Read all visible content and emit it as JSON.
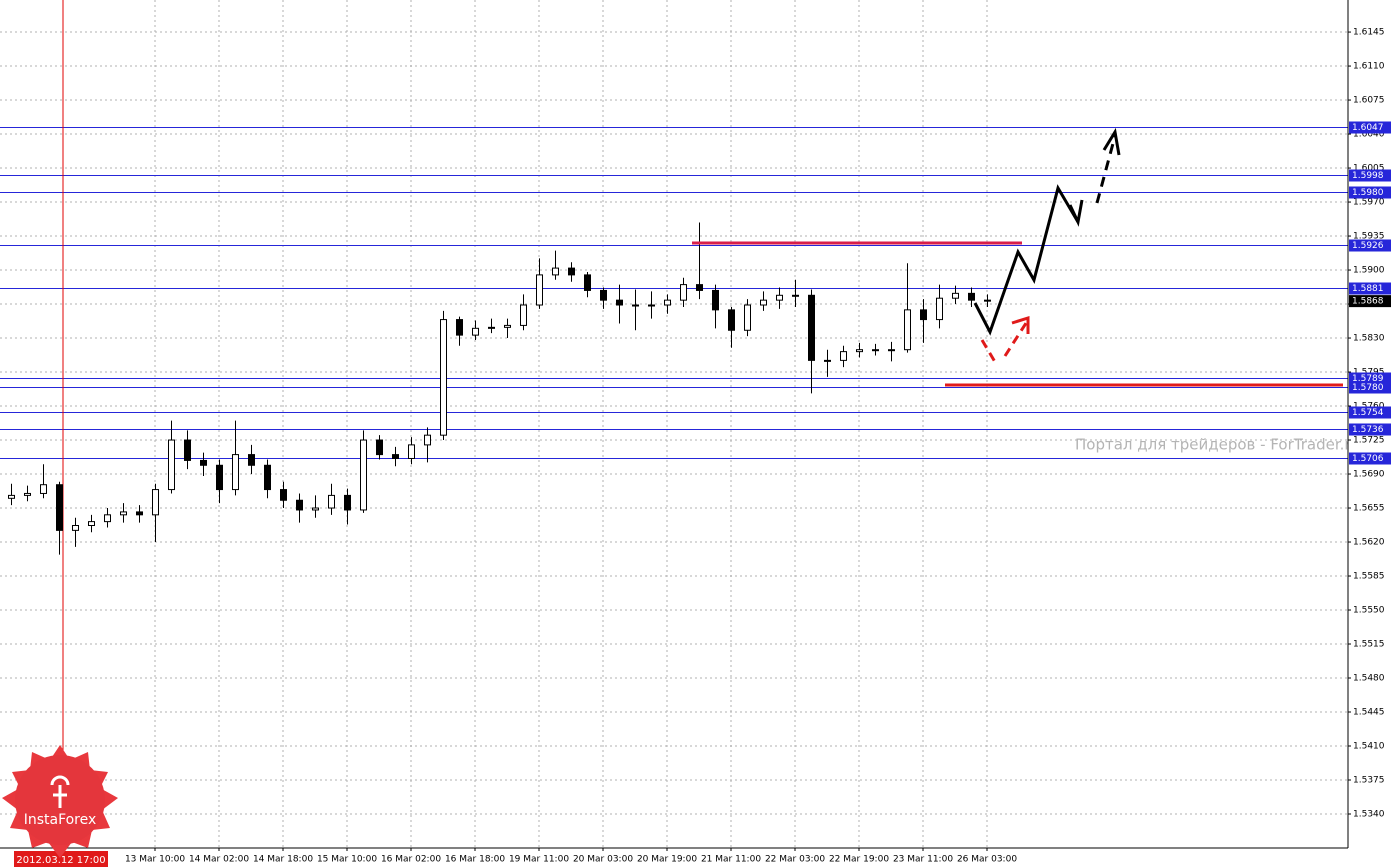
{
  "chart_data": {
    "type": "candlestick",
    "categories": [
      null,
      null,
      null,
      null,
      null,
      null,
      null,
      null,
      null,
      "13 Mar 10:00",
      null,
      null,
      null,
      "14 Mar 02:00",
      null,
      null,
      null,
      "14 Mar 18:00",
      null,
      null,
      null,
      "15 Mar 10:00",
      null,
      null,
      null,
      "16 Mar 02:00",
      null,
      null,
      null,
      "16 Mar 18:00",
      null,
      null,
      null,
      "19 Mar 11:00",
      null,
      null,
      null,
      "20 Mar 03:00",
      null,
      null,
      null,
      "20 Mar 19:00",
      null,
      null,
      null,
      "21 Mar 11:00",
      null,
      null,
      null,
      "22 Mar 03:00",
      null,
      null,
      null,
      "22 Mar 19:00",
      null,
      null,
      null,
      "23 Mar 11:00",
      null,
      null,
      null,
      "26 Mar 03:00"
    ],
    "open": [
      1.5665,
      1.5668,
      1.567,
      1.5679,
      1.5632,
      1.5637,
      1.5641,
      1.5648,
      1.5651,
      1.5648,
      1.5674,
      1.5725,
      1.5704,
      1.5699,
      1.5674,
      1.571,
      1.5699,
      1.5674,
      1.5663,
      1.5653,
      1.5655,
      1.5668,
      1.5653,
      1.5725,
      1.571,
      1.5706,
      1.572,
      1.573,
      1.5849,
      1.5833,
      1.584,
      1.5841,
      1.5843,
      1.5864,
      1.5895,
      1.5902,
      1.5895,
      1.5879,
      1.5869,
      1.5864,
      1.5864,
      1.5864,
      1.5869,
      1.5885,
      1.5879,
      1.5859,
      1.5838,
      1.5864,
      1.5869,
      1.5874,
      1.5874,
      1.5807,
      1.5807,
      1.5816,
      1.5818,
      1.5818,
      1.5818,
      1.5859,
      1.5849,
      1.5871,
      1.5876,
      1.5869
    ],
    "high": [
      1.568,
      1.5678,
      1.57,
      1.5682,
      1.5645,
      1.5648,
      1.5655,
      1.566,
      1.5658,
      1.568,
      1.5745,
      1.5735,
      1.5712,
      1.5705,
      1.5745,
      1.572,
      1.5705,
      1.5682,
      1.567,
      1.5668,
      1.568,
      1.5675,
      1.5735,
      1.573,
      1.5718,
      1.5728,
      1.5738,
      1.5858,
      1.5852,
      1.5848,
      1.585,
      1.585,
      1.5875,
      1.5912,
      1.592,
      1.5908,
      1.5898,
      1.5882,
      1.5885,
      1.588,
      1.5878,
      1.5875,
      1.5892,
      1.5949,
      1.5885,
      1.5862,
      1.587,
      1.5878,
      1.5882,
      1.589,
      1.588,
      1.5818,
      1.5822,
      1.5825,
      1.5824,
      1.5826,
      1.5907,
      1.587,
      1.5885,
      1.5884,
      1.5882,
      1.5875
    ],
    "low": [
      1.5658,
      1.5662,
      1.5665,
      1.5607,
      1.5615,
      1.563,
      1.5635,
      1.564,
      1.564,
      1.562,
      1.567,
      1.5695,
      1.5688,
      1.566,
      1.5668,
      1.569,
      1.5665,
      1.5655,
      1.564,
      1.5645,
      1.5648,
      1.5638,
      1.565,
      1.5705,
      1.5698,
      1.57,
      1.5702,
      1.5725,
      1.5822,
      1.5828,
      1.5835,
      1.583,
      1.5838,
      1.586,
      1.589,
      1.5888,
      1.5872,
      1.586,
      1.5845,
      1.5838,
      1.585,
      1.5855,
      1.5862,
      1.587,
      1.584,
      1.582,
      1.5832,
      1.5858,
      1.586,
      1.5862,
      1.5773,
      1.579,
      1.58,
      1.581,
      1.5812,
      1.5806,
      1.5815,
      1.5825,
      1.584,
      1.5865,
      1.5862,
      1.5862
    ],
    "close": [
      1.5668,
      1.567,
      1.5679,
      1.5632,
      1.5637,
      1.5641,
      1.5648,
      1.5651,
      1.5648,
      1.5674,
      1.5725,
      1.5704,
      1.5699,
      1.5674,
      1.571,
      1.5699,
      1.5674,
      1.5663,
      1.5653,
      1.5655,
      1.5668,
      1.5653,
      1.5725,
      1.571,
      1.5706,
      1.572,
      1.573,
      1.5849,
      1.5833,
      1.584,
      1.5841,
      1.5843,
      1.5864,
      1.5895,
      1.5902,
      1.5895,
      1.5879,
      1.5869,
      1.5864,
      1.5864,
      1.5864,
      1.5869,
      1.5885,
      1.5879,
      1.5859,
      1.5838,
      1.5864,
      1.5869,
      1.5874,
      1.5874,
      1.5807,
      1.5807,
      1.5816,
      1.5818,
      1.5818,
      1.5818,
      1.5859,
      1.5849,
      1.5871,
      1.5876,
      1.5869,
      1.5868
    ],
    "ylim": [
      1.5305,
      1.6178
    ],
    "yticks": [
      {
        "value": 1.534,
        "label": "1.5340"
      },
      1.5375,
      {
        "value": 1.541,
        "label": "1.5410"
      },
      1.5445,
      {
        "value": 1.548,
        "label": "1.5480"
      },
      1.5515,
      {
        "value": 1.555,
        "label": "1.5550"
      },
      1.5585,
      {
        "value": 1.562,
        "label": "1.5620"
      },
      1.5655,
      {
        "value": 1.569,
        "label": "1.5690"
      },
      1.5725,
      {
        "value": 1.576,
        "label": "1.5760"
      },
      1.5795,
      {
        "value": 1.583,
        "label": "1.5830"
      },
      1.5865,
      {
        "value": 1.59,
        "label": "1.5900"
      },
      1.5935,
      {
        "value": 1.597,
        "label": "1.5970"
      },
      1.6005,
      {
        "value": 1.604,
        "label": "1.6040"
      },
      1.6075,
      {
        "value": 1.611,
        "label": "1.6110"
      },
      1.6145
    ],
    "grid": true,
    "levels": [
      1.6047,
      1.5998,
      {
        "value": 1.598,
        "label": "1.5980"
      },
      1.5926,
      1.5881,
      1.5789,
      {
        "value": 1.578,
        "label": "1.5780"
      },
      1.5754,
      1.5736,
      1.5706
    ],
    "level_color": "#2626d9",
    "last_price": 1.5868,
    "cursor_label": "2012.03.12 17:00",
    "watermark": "Портал для трейдеров - ForTrader.ru",
    "logo": "InstaForex"
  }
}
